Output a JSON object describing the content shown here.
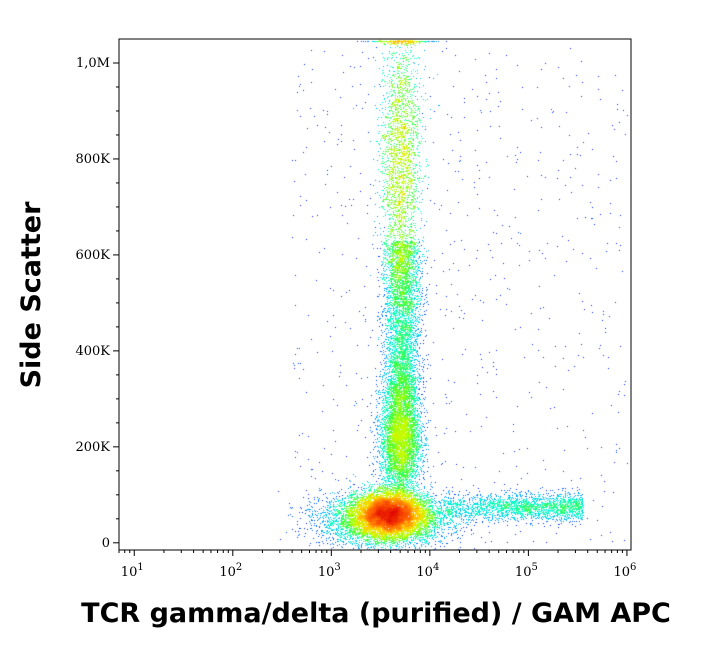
{
  "chart_data": {
    "type": "scatter",
    "subtype": "flow-cytometry density plot",
    "xlabel": "TCR gamma/delta (purified) / GAM APC",
    "ylabel": "Side Scatter",
    "x_scale": "log",
    "xlim": [
      7,
      1100000
    ],
    "ylim": [
      -15000,
      1050000
    ],
    "x_ticks": [
      {
        "value": 10,
        "base": "10",
        "exp": "1"
      },
      {
        "value": 100,
        "base": "10",
        "exp": "2"
      },
      {
        "value": 1000,
        "base": "10",
        "exp": "3"
      },
      {
        "value": 10000,
        "base": "10",
        "exp": "4"
      },
      {
        "value": 100000,
        "base": "10",
        "exp": "5"
      },
      {
        "value": 1000000,
        "base": "10",
        "exp": "6"
      }
    ],
    "y_ticks": [
      {
        "value": 0,
        "label": "0"
      },
      {
        "value": 200000,
        "label": "200K"
      },
      {
        "value": 400000,
        "label": "400K"
      },
      {
        "value": 600000,
        "label": "600K"
      },
      {
        "value": 800000,
        "label": "800K"
      },
      {
        "value": 1000000,
        "label": "1,0M"
      }
    ],
    "grid": false,
    "colormap": [
      "#0000ff",
      "#0050ff",
      "#00b4ff",
      "#00ffd0",
      "#40ff40",
      "#c0ff00",
      "#ffd000",
      "#ff6000",
      "#e00000"
    ],
    "populations": [
      {
        "name": "",
        "x_center": 3800,
        "y_center": 60000,
        "x_spread_decades": 0.18,
        "y_spread": 25000,
        "density": "very high"
      },
      {
        "name": "",
        "x_center": 5000,
        "y_center": 220000,
        "x_spread_decades": 0.1,
        "y_spread": 60000,
        "density": "medium"
      },
      {
        "name": "",
        "x_center": 5000,
        "y_center": 800000,
        "x_spread_decades": 0.1,
        "y_spread": 150000,
        "density": "high"
      },
      {
        "name": "",
        "x_center": 150000,
        "y_center": 75000,
        "x_spread_decades": 0.45,
        "y_spread": 15000,
        "density": "low"
      }
    ]
  }
}
